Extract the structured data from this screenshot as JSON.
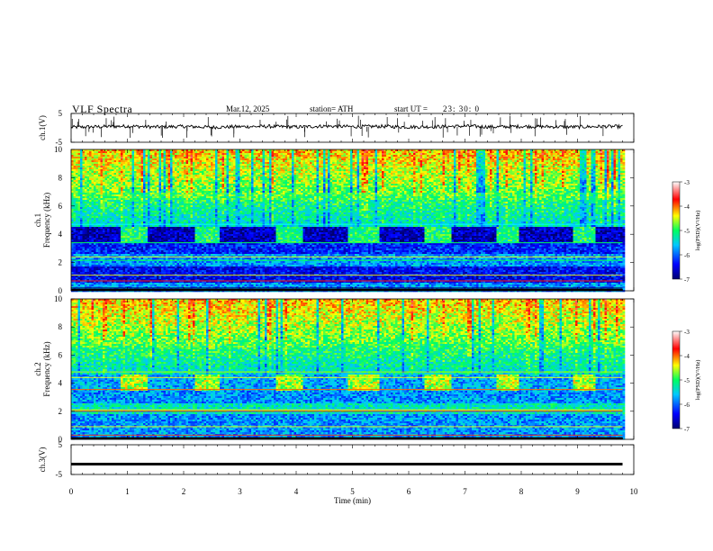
{
  "header": {
    "title": "VLF  Spectra",
    "date": "Mar.12, 2025",
    "station": "station= ATH",
    "start_label": "start  UT  =",
    "start_time": "23: 30: 0"
  },
  "chart_data": [
    {
      "type": "line",
      "panel": "ch1-waveform",
      "ylabel": "ch.1(V)",
      "ylim": [
        -5,
        5
      ],
      "yticks": [
        "5",
        "-5"
      ],
      "x": [
        0,
        0.5,
        1,
        1.5,
        2,
        2.5,
        3,
        3.5,
        4,
        4.5,
        5,
        5.5,
        6,
        6.5,
        7,
        7.5,
        8,
        8.5,
        9,
        9.5,
        9.8
      ],
      "values": [
        0.2,
        0.4,
        0.6,
        0.3,
        0.5,
        0.2,
        0.4,
        0.5,
        0.3,
        0.6,
        0.4,
        0.5,
        0.3,
        0.4,
        0.6,
        0.3,
        0.5,
        0.4,
        0.3,
        0.5,
        0.4
      ],
      "line_color": "#000000",
      "xlim": [
        0,
        10
      ]
    },
    {
      "type": "heatmap",
      "panel": "ch1-spectrogram",
      "ylabel": "ch.1\nFrequency  (kHz)",
      "ylabel_lines": [
        "ch.1",
        "Frequency  (kHz)"
      ],
      "ylim": [
        0,
        10
      ],
      "yticks": [
        "0",
        "2",
        "4",
        "6",
        "8",
        "10"
      ],
      "xlim": [
        0,
        10
      ],
      "colorbar": {
        "label": "log(PSD)(V²/Hz)",
        "range": [
          -7,
          -3
        ],
        "ticks": [
          "-3",
          "-4",
          "-5",
          "-6",
          "-7"
        ]
      },
      "transmitter_band_khz": [
        3.5,
        4.5
      ],
      "transmitter_on_intervals_min": [
        [
          0.85,
          1.35
        ],
        [
          2.2,
          2.6
        ],
        [
          3.6,
          4.1
        ],
        [
          4.9,
          5.45
        ],
        [
          6.25,
          6.75
        ],
        [
          7.55,
          7.95
        ],
        [
          8.9,
          9.3
        ]
      ]
    },
    {
      "type": "heatmap",
      "panel": "ch2-spectrogram",
      "ylabel": "ch.2\nFrequency  (kHz)",
      "ylabel_lines": [
        "ch.2",
        "Frequency  (kHz)"
      ],
      "ylim": [
        0,
        10
      ],
      "yticks": [
        "0",
        "2",
        "4",
        "6",
        "8",
        "10"
      ],
      "xlim": [
        0,
        10
      ],
      "colorbar": {
        "label": "log(PSD)(V²/Hz)",
        "range": [
          -7,
          -3
        ],
        "ticks": [
          "-3",
          "-4",
          "-5",
          "-6",
          "-7"
        ]
      },
      "transmitter_band_khz": [
        3.5,
        4.5
      ],
      "transmitter_on_intervals_min": [
        [
          0.85,
          1.35
        ],
        [
          2.2,
          2.6
        ],
        [
          3.6,
          4.1
        ],
        [
          4.9,
          5.45
        ],
        [
          6.25,
          6.75
        ],
        [
          7.55,
          7.95
        ],
        [
          8.9,
          9.3
        ]
      ]
    },
    {
      "type": "line",
      "panel": "ch3-waveform",
      "ylabel": "ch.3(V)",
      "ylim": [
        -5,
        5
      ],
      "yticks": [
        "5",
        "-5"
      ],
      "x": [
        0,
        9.8
      ],
      "values": [
        -1.5,
        -1.5
      ],
      "line_color": "#000000",
      "xlim": [
        0,
        10
      ],
      "xlabel": "Time  (min)",
      "xticks": [
        "0",
        "1",
        "2",
        "3",
        "4",
        "5",
        "6",
        "7",
        "8",
        "9",
        "10"
      ]
    }
  ],
  "colors": {
    "colormap": [
      "#00007a",
      "#0000ff",
      "#00ffff",
      "#00ff00",
      "#ffff00",
      "#ff0000",
      "#ffffff"
    ],
    "axis": "#000000"
  }
}
